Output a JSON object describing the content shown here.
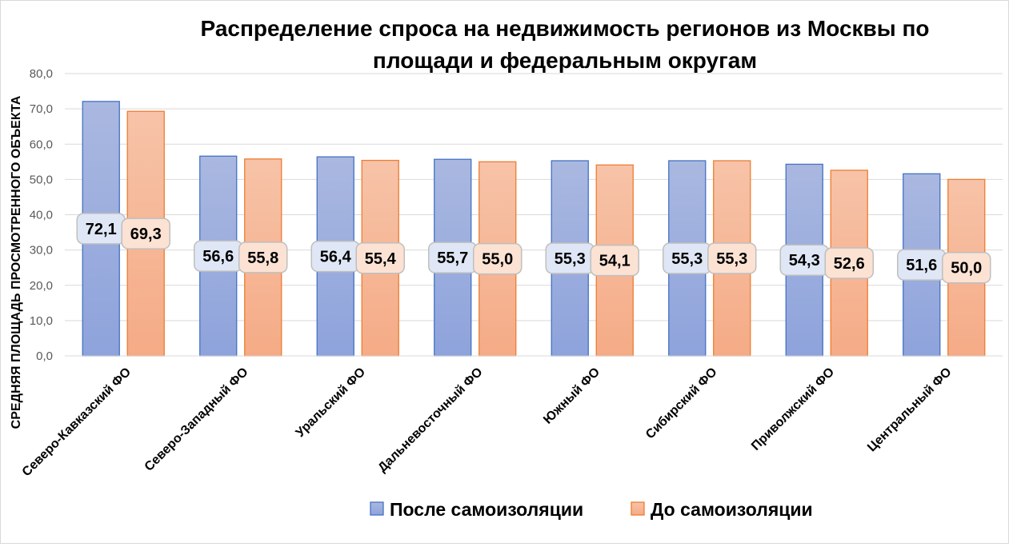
{
  "chart_data": {
    "type": "bar",
    "title": "Распределение  спроса на недвижимость  регионов  из Москвы по площади  и федеральным  округам",
    "title_lines": [
      "Распределение  спроса на недвижимость  регионов  из Москвы по",
      "площади  и федеральным  округам"
    ],
    "xlabel": "",
    "ylabel": "СРЕДНЯЯ ПЛОЩАДЬ ПРОСМОТРЕННОГО ОБЪЕКТА",
    "ylim": [
      0,
      80
    ],
    "yticks": [
      0,
      10,
      20,
      30,
      40,
      50,
      60,
      70,
      80
    ],
    "ytick_labels": [
      "0,0",
      "10,0",
      "20,0",
      "30,0",
      "40,0",
      "50,0",
      "60,0",
      "70,0",
      "80,0"
    ],
    "grid": true,
    "legend_position": "bottom",
    "categories": [
      "Северо-Кавказский ФО",
      "Северо-Западный ФО",
      "Уральский ФО",
      "Дальневосточный ФО",
      "Южный ФО",
      "Сибирский ФО",
      "Приволжский ФО",
      "Центральный ФО"
    ],
    "series": [
      {
        "name": "После самоизоляции",
        "values": [
          72.1,
          56.6,
          56.4,
          55.7,
          55.3,
          55.3,
          54.3,
          51.6
        ],
        "labels": [
          "72,1",
          "56,6",
          "56,4",
          "55,7",
          "55,3",
          "55,3",
          "54,3",
          "51,6"
        ],
        "color_top": "#aab8e0",
        "color_bottom": "#8ea3dc",
        "border": "#4472c4",
        "label_bg": "#dfe6f5"
      },
      {
        "name": "До самоизоляции",
        "values": [
          69.3,
          55.8,
          55.4,
          55.0,
          54.1,
          55.3,
          52.6,
          50.0
        ],
        "labels": [
          "69,3",
          "55,8",
          "55,4",
          "55,0",
          "54,1",
          "55,3",
          "52,6",
          "50,0"
        ],
        "color_top": "#f7c3a8",
        "color_bottom": "#f5ab86",
        "border": "#ed7d31",
        "label_bg": "#fbe2d3"
      }
    ]
  }
}
